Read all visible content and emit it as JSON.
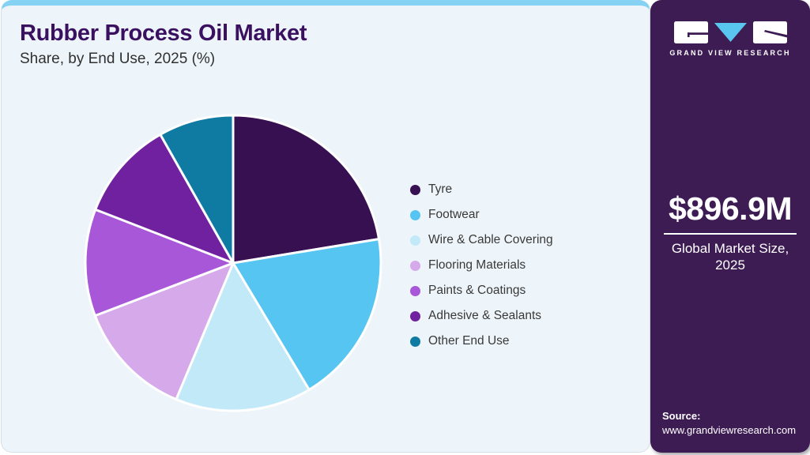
{
  "header": {
    "title": "Rubber Process Oil Market",
    "subtitle": "Share, by End Use, 2025 (%)"
  },
  "chart_data": {
    "type": "pie",
    "title": "Rubber Process Oil Market Share, by End Use, 2025 (%)",
    "unit": "%",
    "direction": "clockwise",
    "start_angle_deg": 0,
    "categories": [
      "Tyre",
      "Footwear",
      "Wire & Cable Covering",
      "Flooring Materials",
      "Paints & Coatings",
      "Adhesive & Sealants",
      "Other End Use"
    ],
    "values": [
      22.4,
      19.0,
      14.9,
      12.9,
      11.7,
      10.9,
      8.2
    ],
    "colors": [
      "#371052",
      "#57c5f2",
      "#c2e9f8",
      "#d6a9ea",
      "#a957d9",
      "#70219f",
      "#0f7ba3"
    ],
    "legend_position": "right",
    "slice_gap_color": "#ffffff"
  },
  "sidebar": {
    "brand": "GRAND VIEW RESEARCH",
    "market_size": "$896.9M",
    "market_label": "Global Market Size, 2025",
    "source_label": "Source:",
    "source_url": "www.grandviewresearch.com"
  },
  "theme": {
    "accent_strip": "#85d2f2",
    "panel_bg": "#eef5fa",
    "sidebar_bg": "#3d1c54",
    "title_color": "#3a1060",
    "logo_triangle": "#59c6f0"
  }
}
